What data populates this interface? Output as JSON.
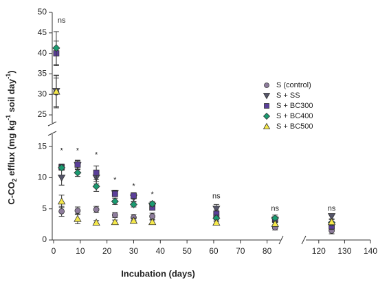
{
  "chart_data": {
    "type": "scatter",
    "xlabel": "Incubation (days)",
    "ylabel_parts": [
      "C-CO",
      "2",
      " efflux (mg kg",
      "-1",
      " soil day",
      "-1",
      ")"
    ],
    "xlim": [
      0,
      140
    ],
    "x_break": [
      85,
      115
    ],
    "xticks": [
      0,
      10,
      20,
      30,
      40,
      50,
      60,
      70,
      80,
      120,
      130,
      140
    ],
    "ylim": [
      0,
      50
    ],
    "y_break": [
      17,
      23
    ],
    "yticks": [
      0,
      5,
      10,
      15,
      25,
      30,
      35,
      40,
      45,
      50
    ],
    "x": [
      1,
      3,
      9,
      16,
      23,
      30,
      37,
      61,
      83,
      125
    ],
    "legend": "right",
    "series": [
      {
        "name": "S (control)",
        "color": "#8e7c9c",
        "marker": "circle",
        "values": [
          30.5,
          4.6,
          4.7,
          4.9,
          4.0,
          3.6,
          3.8,
          3.6,
          2.0,
          1.5
        ],
        "errors": [
          3.5,
          0.8,
          0.6,
          0.5,
          0.4,
          0.5,
          0.5,
          0.6,
          0.4,
          0.5
        ]
      },
      {
        "name": "S + SS",
        "color": "#55556a",
        "marker": "triangle-down",
        "values": [
          30.8,
          10.0,
          12.0,
          10.0,
          7.5,
          6.8,
          5.5,
          5.0,
          3.2,
          3.8
        ],
        "errors": [
          3.8,
          1.2,
          0.7,
          1.0,
          0.5,
          0.6,
          0.5,
          0.7,
          0.4,
          0.4
        ]
      },
      {
        "name": "S + BC300",
        "color": "#5b3f9a",
        "marker": "square",
        "values": [
          40.0,
          11.7,
          12.1,
          10.8,
          7.4,
          7.1,
          5.2,
          4.2,
          3.3,
          2.2
        ],
        "errors": [
          3.0,
          0.5,
          0.7,
          1.1,
          0.4,
          0.5,
          0.4,
          0.6,
          0.4,
          0.5
        ]
      },
      {
        "name": "S + BC400",
        "color": "#1a9a70",
        "marker": "diamond",
        "values": [
          41.3,
          11.6,
          10.8,
          8.6,
          6.2,
          5.7,
          5.8,
          3.5,
          3.5,
          2.8
        ],
        "errors": [
          4.0,
          0.4,
          0.6,
          0.8,
          0.5,
          0.4,
          0.4,
          0.5,
          0.5,
          0.5
        ]
      },
      {
        "name": "S + BC500",
        "color": "#f5e84a",
        "marker": "triangle-up",
        "values": [
          30.7,
          6.2,
          3.4,
          2.8,
          2.9,
          3.1,
          2.9,
          2.8,
          2.6,
          2.9
        ],
        "errors": [
          4.0,
          1.0,
          0.8,
          0.3,
          0.3,
          0.4,
          0.3,
          0.4,
          0.4,
          0.4
        ]
      }
    ],
    "annotations": [
      {
        "text": "ns",
        "x": 3,
        "y": 48
      },
      {
        "text": "*",
        "x": 3,
        "y": 14.3
      },
      {
        "text": "*",
        "x": 9,
        "y": 14.3
      },
      {
        "text": "*",
        "x": 16,
        "y": 13.6
      },
      {
        "text": "*",
        "x": 23,
        "y": 9.6
      },
      {
        "text": "*",
        "x": 30,
        "y": 8.6
      },
      {
        "text": "*",
        "x": 37,
        "y": 7.3
      },
      {
        "text": "ns",
        "x": 61,
        "y": 7.0
      },
      {
        "text": "ns",
        "x": 83,
        "y": 5.0
      },
      {
        "text": "ns",
        "x": 125,
        "y": 5.0
      }
    ]
  }
}
